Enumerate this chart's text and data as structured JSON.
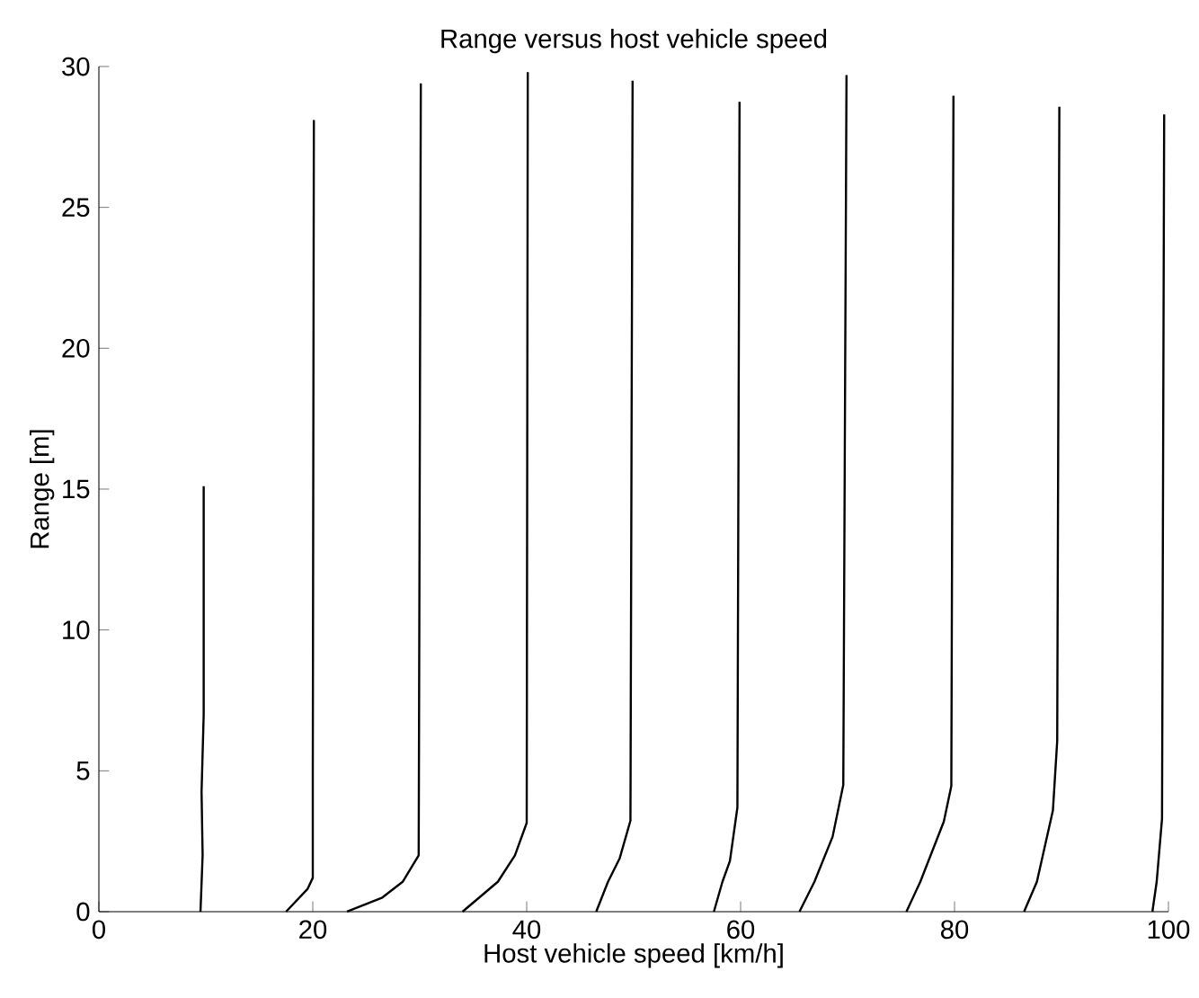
{
  "chart_data": {
    "type": "line",
    "title": "Range versus host vehicle speed",
    "xlabel": "Host vehicle speed [km/h]",
    "ylabel": "Range [m]",
    "xlim": [
      0,
      100
    ],
    "ylim": [
      0,
      30
    ],
    "xticks": [
      0,
      20,
      40,
      60,
      80,
      100
    ],
    "yticks": [
      0,
      5,
      10,
      15,
      20,
      25,
      30
    ],
    "marker": "none",
    "line_style": "solid",
    "series": [
      {
        "color": "#000000",
        "x": [
          9.5,
          9.7,
          9.6,
          9.8,
          9.8
        ],
        "values": [
          0,
          2,
          4.25,
          7,
          15.1
        ]
      },
      {
        "color": "#000000",
        "x": [
          17.5,
          19.5,
          20,
          20,
          20.1
        ],
        "values": [
          0,
          0.8,
          1.2,
          5,
          28.1
        ]
      },
      {
        "color": "#000000",
        "x": [
          23.2,
          26.5,
          28.4,
          29.9,
          30.1
        ],
        "values": [
          0,
          0.5,
          1.06,
          2,
          29.4
        ]
      },
      {
        "color": "#000000",
        "x": [
          34,
          37.3,
          38.9,
          40,
          40.1
        ],
        "values": [
          0,
          1.06,
          2,
          3.15,
          29.8
        ]
      },
      {
        "color": "#000000",
        "x": [
          46.5,
          47.6,
          48.7,
          49.7,
          49.9
        ],
        "values": [
          0,
          1.06,
          1.9,
          3.23,
          29.5
        ]
      },
      {
        "color": "#000000",
        "x": [
          57.5,
          58.3,
          59,
          59.7,
          59.9
        ],
        "values": [
          0,
          1.06,
          1.8,
          3.7,
          28.75
        ]
      },
      {
        "color": "#000000",
        "x": [
          65.5,
          66.9,
          68.6,
          69.6,
          69.9
        ],
        "values": [
          0,
          1.06,
          2.66,
          4.5,
          29.7
        ]
      },
      {
        "color": "#000000",
        "x": [
          75.5,
          76.8,
          79,
          79.7,
          79.9
        ],
        "values": [
          0,
          1.06,
          3.2,
          4.46,
          28.96
        ]
      },
      {
        "color": "#000000",
        "x": [
          86.5,
          87.7,
          89.2,
          89.6,
          89.8
        ],
        "values": [
          0,
          1.06,
          3.6,
          6.06,
          28.57
        ]
      },
      {
        "color": "#000000",
        "x": [
          98.5,
          98.9,
          99.4,
          99.6
        ],
        "values": [
          0,
          1.06,
          3.3,
          28.3
        ]
      }
    ]
  }
}
